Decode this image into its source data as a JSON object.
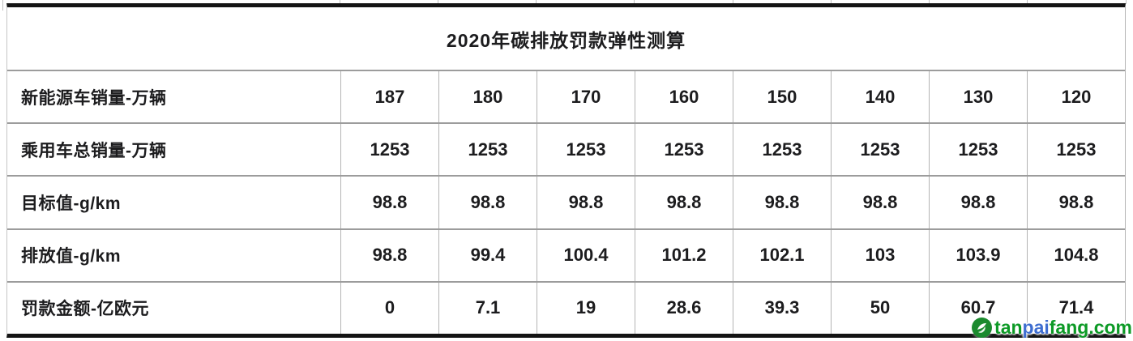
{
  "table": {
    "title": "2020年碳排放罚款弹性测算",
    "rows": [
      {
        "label": "新能源车销量-万辆",
        "values": [
          "187",
          "180",
          "170",
          "160",
          "150",
          "140",
          "130",
          "120"
        ]
      },
      {
        "label": "乘用车总销量-万辆",
        "values": [
          "1253",
          "1253",
          "1253",
          "1253",
          "1253",
          "1253",
          "1253",
          "1253"
        ]
      },
      {
        "label": "目标值-g/km",
        "values": [
          "98.8",
          "98.8",
          "98.8",
          "98.8",
          "98.8",
          "98.8",
          "98.8",
          "98.8"
        ]
      },
      {
        "label": "排放值-g/km",
        "values": [
          "98.8",
          "99.4",
          "100.4",
          "101.2",
          "102.1",
          "103",
          "103.9",
          "104.8"
        ]
      },
      {
        "label": "罚款金额-亿欧元",
        "values": [
          "0",
          "7.1",
          "19",
          "28.6",
          "39.3",
          "50",
          "60.7",
          "71.4"
        ]
      }
    ]
  },
  "watermark": {
    "segments": [
      {
        "text": "tan",
        "color": "#0d9a26"
      },
      {
        "text": "pai",
        "color": "#3e6ed0"
      },
      {
        "text": "fang.com",
        "color": "#0d9a26"
      }
    ],
    "logo_color": "#1b8a2e"
  },
  "colors": {
    "grid_line": "#b4b4b4",
    "row_separator": "#9c9c9c",
    "outer_border": "#141414",
    "text": "#1c1c1e"
  },
  "chart_data": {
    "type": "table",
    "title": "2020年碳排放罚款弹性测算",
    "row_headers": [
      "新能源车销量-万辆",
      "乘用车总销量-万辆",
      "目标值-g/km",
      "排放值-g/km",
      "罚款金额-亿欧元"
    ],
    "rows": [
      [
        187,
        180,
        170,
        160,
        150,
        140,
        130,
        120
      ],
      [
        1253,
        1253,
        1253,
        1253,
        1253,
        1253,
        1253,
        1253
      ],
      [
        98.8,
        98.8,
        98.8,
        98.8,
        98.8,
        98.8,
        98.8,
        98.8
      ],
      [
        98.8,
        99.4,
        100.4,
        101.2,
        102.1,
        103,
        103.9,
        104.8
      ],
      [
        0,
        7.1,
        19,
        28.6,
        39.3,
        50,
        60.7,
        71.4
      ]
    ],
    "watermark_text": "tanpaifang.com"
  }
}
